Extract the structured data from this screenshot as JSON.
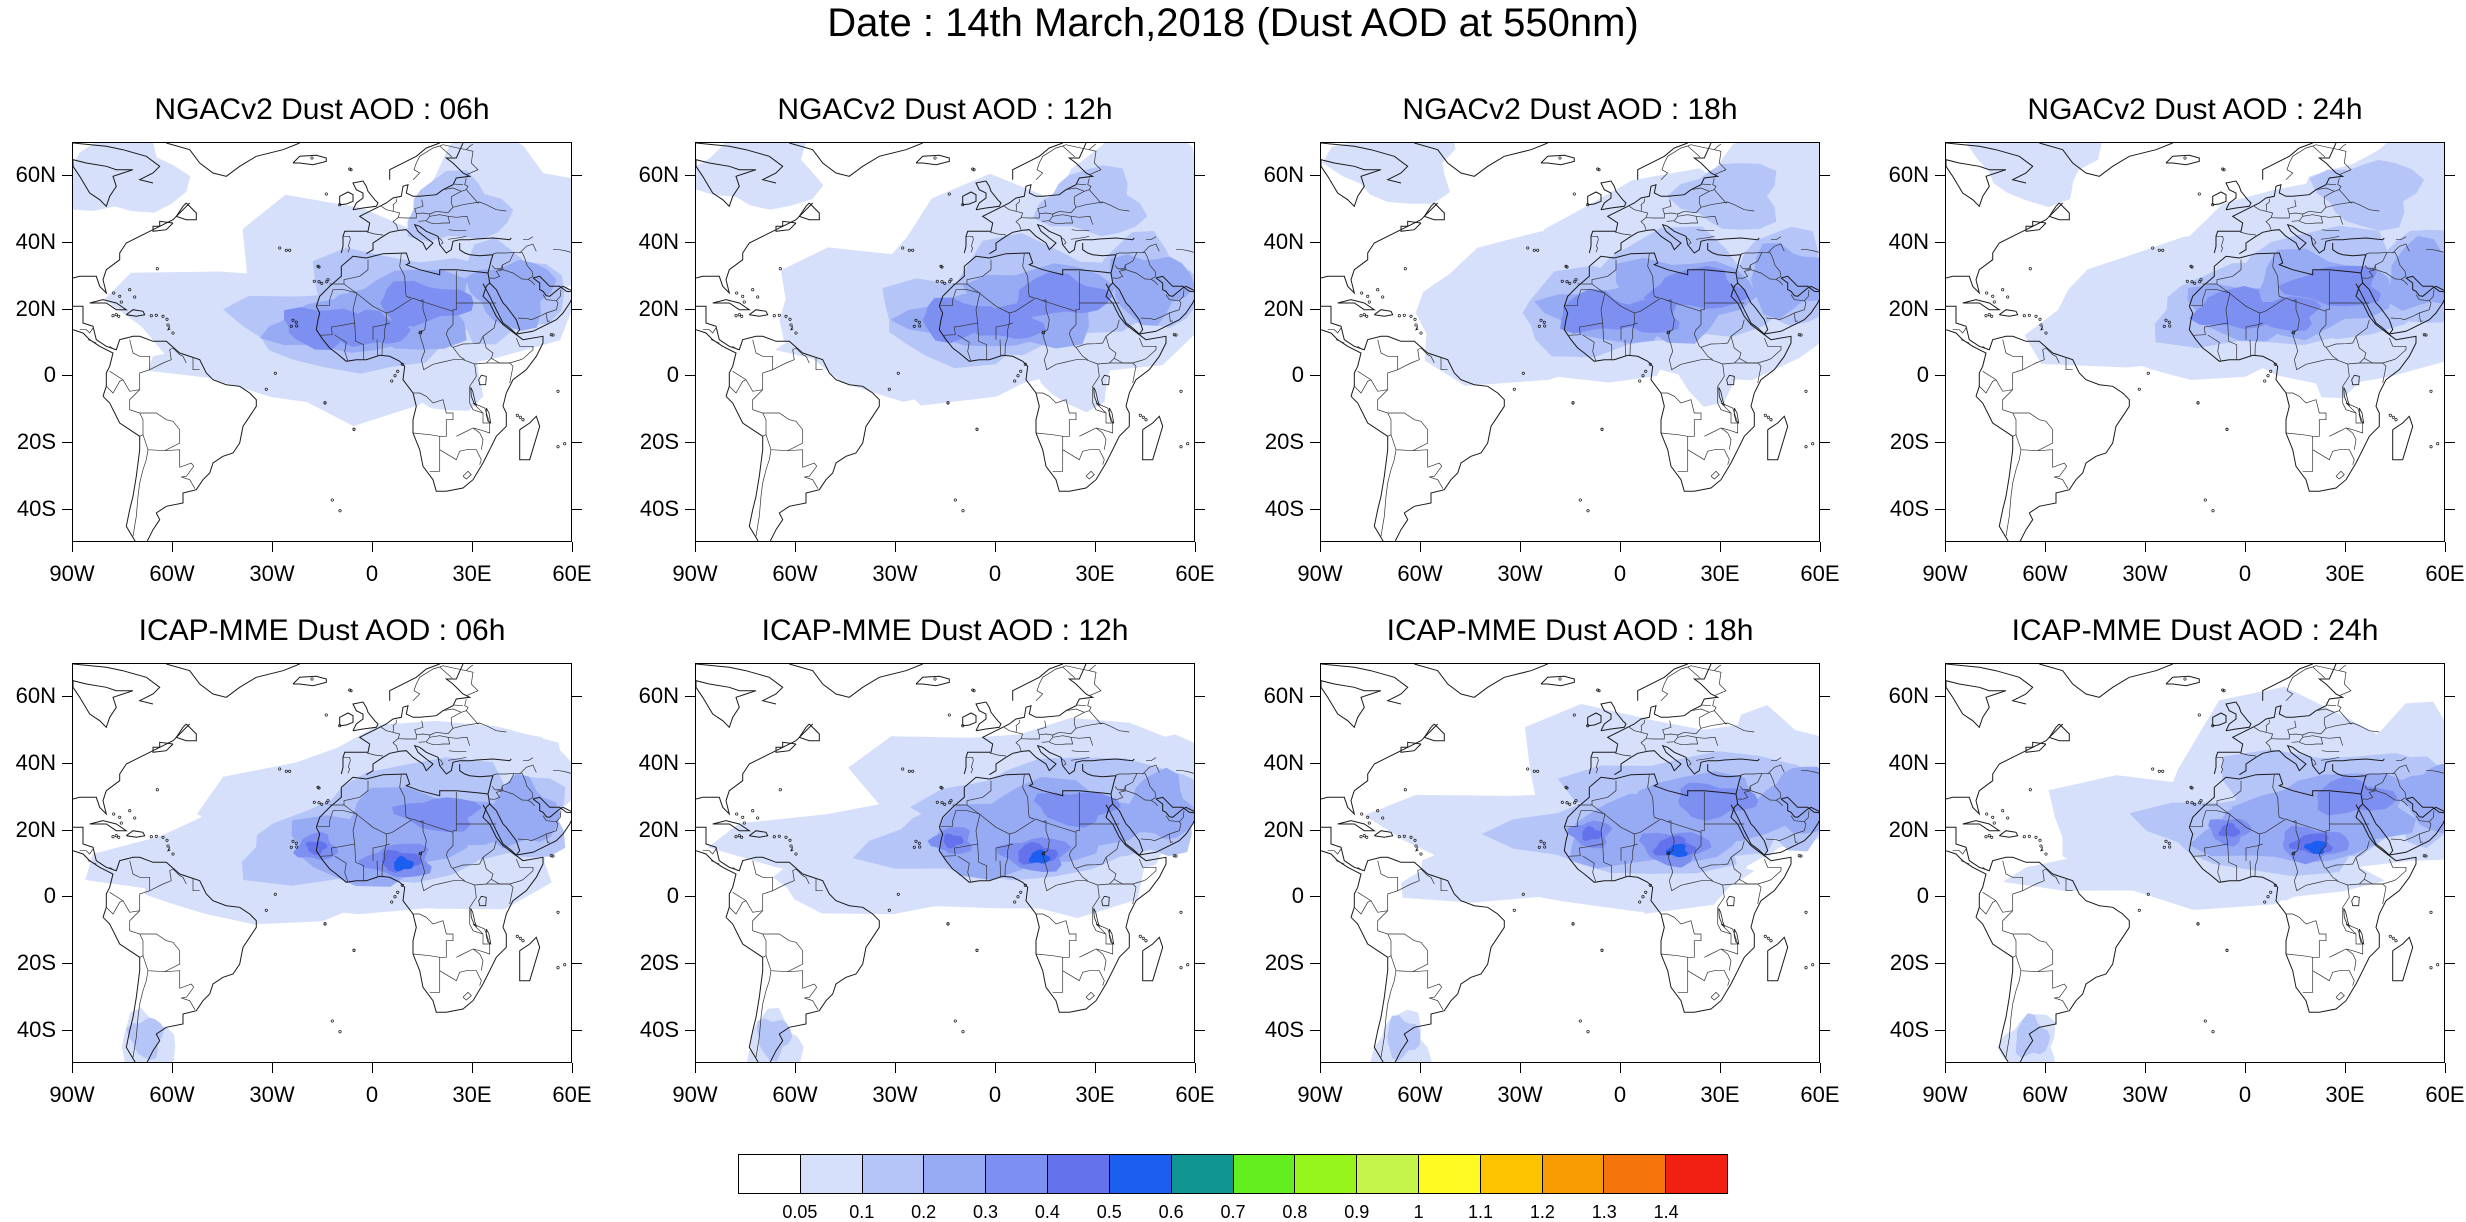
{
  "figure": {
    "title": "Date : 14th March,2018 (Dust AOD at 550nm)"
  },
  "panels": [
    {
      "title": "NGACv2 Dust AOD : 06h",
      "model": "NGACv2",
      "forecast_hour": "06h"
    },
    {
      "title": "NGACv2 Dust AOD : 12h",
      "model": "NGACv2",
      "forecast_hour": "12h"
    },
    {
      "title": "NGACv2 Dust AOD : 18h",
      "model": "NGACv2",
      "forecast_hour": "18h"
    },
    {
      "title": "NGACv2 Dust AOD : 24h",
      "model": "NGACv2",
      "forecast_hour": "24h"
    },
    {
      "title": "ICAP-MME Dust AOD : 06h",
      "model": "ICAP-MME",
      "forecast_hour": "06h"
    },
    {
      "title": "ICAP-MME Dust AOD : 12h",
      "model": "ICAP-MME",
      "forecast_hour": "12h"
    },
    {
      "title": "ICAP-MME Dust AOD : 18h",
      "model": "ICAP-MME",
      "forecast_hour": "18h"
    },
    {
      "title": "ICAP-MME Dust AOD : 24h",
      "model": "ICAP-MME",
      "forecast_hour": "24h"
    }
  ],
  "map_extent": {
    "lon_min": -90,
    "lon_max": 60,
    "lat_min": -50,
    "lat_max": 70
  },
  "lat_labels": [
    "60N",
    "40N",
    "20N",
    "0",
    "20S",
    "40S"
  ],
  "lat_values": [
    60,
    40,
    20,
    0,
    -20,
    -40
  ],
  "lon_labels": [
    "90W",
    "60W",
    "30W",
    "0",
    "30E",
    "60E"
  ],
  "lon_values": [
    -90,
    -60,
    -30,
    0,
    30,
    60
  ],
  "colorbar": {
    "labels": [
      "0.05",
      "0.1",
      "0.2",
      "0.3",
      "0.4",
      "0.5",
      "0.6",
      "0.7",
      "0.8",
      "0.9",
      "1",
      "1.1",
      "1.2",
      "1.3",
      "1.4"
    ],
    "colors": [
      "#ffffff",
      "#d6e0fb",
      "#b5c5f8",
      "#97aaf4",
      "#7d8ff1",
      "#6473ec",
      "#1c5ef0",
      "#119593",
      "#62ee1f",
      "#95f51c",
      "#c5f44b",
      "#fffa22",
      "#fdc300",
      "#f79b00",
      "#f3750c",
      "#f22010"
    ]
  },
  "chart_data": {
    "type": "heatmap",
    "title": "Date : 14th March,2018 (Dust AOD at 550nm)",
    "variable": "Dust AOD at 550nm",
    "date": "14th March,2018",
    "grid": "8 map panels, 2 rows (NGACv2, ICAP-MME) x 4 columns (06h, 12h, 18h, 24h)",
    "xlim": [
      -90,
      60
    ],
    "ylim": [
      -50,
      70
    ],
    "levels": [
      0.05,
      0.1,
      0.2,
      0.3,
      0.4,
      0.5,
      0.6,
      0.7,
      0.8,
      0.9,
      1.0,
      1.1,
      1.2,
      1.3,
      1.4
    ],
    "plume_maxima": [
      {
        "panel": "NGACv2 Dust AOD : 06h",
        "max_aod_approx": 0.5
      },
      {
        "panel": "NGACv2 Dust AOD : 12h",
        "max_aod_approx": 0.5
      },
      {
        "panel": "NGACv2 Dust AOD : 18h",
        "max_aod_approx": 0.5
      },
      {
        "panel": "NGACv2 Dust AOD : 24h",
        "max_aod_approx": 0.5
      },
      {
        "panel": "ICAP-MME Dust AOD : 06h",
        "max_aod_approx": 0.6
      },
      {
        "panel": "ICAP-MME Dust AOD : 12h",
        "max_aod_approx": 0.6
      },
      {
        "panel": "ICAP-MME Dust AOD : 18h",
        "max_aod_approx": 0.6
      },
      {
        "panel": "ICAP-MME Dust AOD : 24h",
        "max_aod_approx": 0.6
      }
    ]
  }
}
